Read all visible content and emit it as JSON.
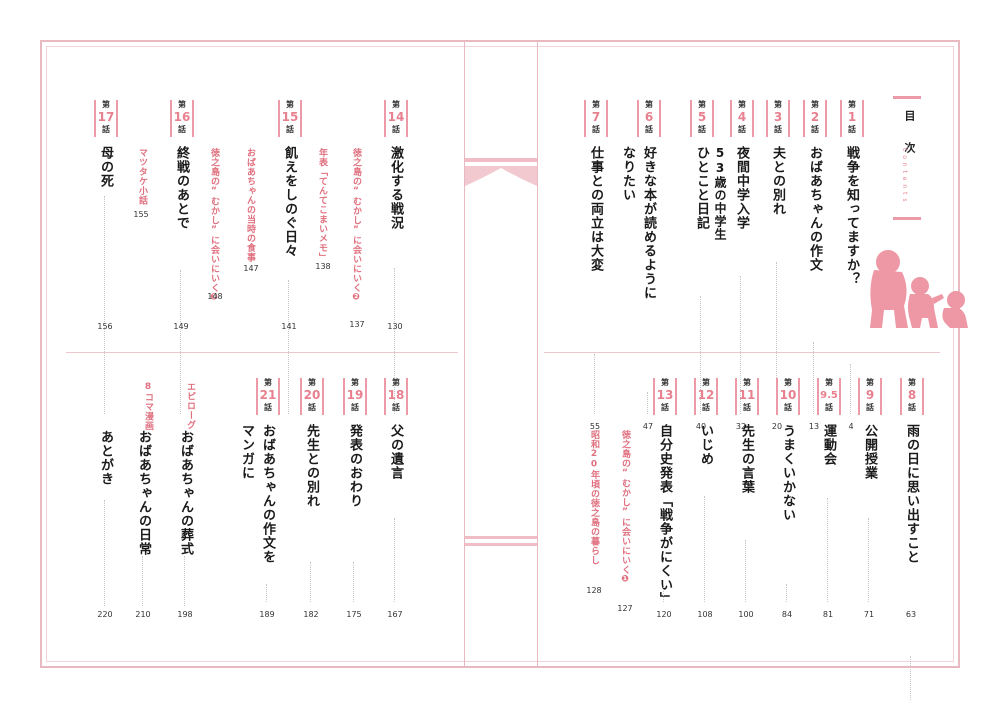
{
  "header": {
    "title": "目 次",
    "subtitle": "c o n t e n t s"
  },
  "chapter_prefix": "第",
  "chapter_suffix": "話",
  "chapters": [
    {
      "num": "1",
      "title": "戦争を知ってますか？",
      "page": "4"
    },
    {
      "num": "2",
      "title": "おばあちゃんの作文",
      "page": "13"
    },
    {
      "num": "3",
      "title": "夫との別れ",
      "page": "20"
    },
    {
      "num": "4",
      "title": "夜間中学入学",
      "title2": "53歳の中学生",
      "page": "32"
    },
    {
      "num": "5",
      "title": "ひとこと日記",
      "page": "40"
    },
    {
      "num": "6",
      "title": "好きな本が読めるように",
      "title2": "なりたい",
      "page": "47"
    },
    {
      "num": "7",
      "title": "仕事との両立は大変",
      "page": "55"
    },
    {
      "num": "8",
      "title": "雨の日に思い出すこと",
      "page": "63"
    },
    {
      "num": "9",
      "title": "公開授業",
      "page": "71"
    },
    {
      "num": "9.5",
      "title": "運動会",
      "page": "81"
    },
    {
      "num": "10",
      "title": "うまくいかない",
      "page": "84"
    },
    {
      "num": "11",
      "title": "先生の言葉",
      "page": "100"
    },
    {
      "num": "12",
      "title": "いじめ",
      "page": "108"
    },
    {
      "num": "13",
      "title": "自分史発表「戦争がにくい」",
      "page": "120"
    },
    {
      "num": "14",
      "title": "激化する戦況",
      "page": "130"
    },
    {
      "num": "15",
      "title": "飢えをしのぐ日々",
      "page": "141"
    },
    {
      "num": "16",
      "title": "終戦のあとで",
      "page": "149"
    },
    {
      "num": "17",
      "title": "母の死",
      "page": "156"
    },
    {
      "num": "18",
      "title": "父の遺言",
      "page": "167"
    },
    {
      "num": "19",
      "title": "発表のおわり",
      "page": "175"
    },
    {
      "num": "20",
      "title": "先生との別れ",
      "page": "182"
    },
    {
      "num": "21",
      "title": "おばあちゃんの作文を",
      "title2": "マンガに",
      "page": "189"
    }
  ],
  "sidebars": [
    {
      "text": "徳之島の“むかし”に会いにいく❶",
      "text2": "昭和20年頃の徳之島の暮らし",
      "page": "127",
      "page2": "128"
    },
    {
      "text": "徳之島の“むかし”に会いにいく❷",
      "page": "137"
    },
    {
      "text": "年表「てんてこまいメモ」",
      "page": "138"
    },
    {
      "text": "おばあちゃんの当時の食事",
      "page": "147"
    },
    {
      "text": "徳之島の“むかし”に会いにいく❸",
      "page": "148"
    },
    {
      "text": "マツタケ小話",
      "page": "155"
    }
  ],
  "extras": [
    {
      "label": "エピローグ",
      "title": "おばあちゃんの葬式",
      "page": "198"
    },
    {
      "label": "8コマ漫画",
      "title": "おばあちゃんの日常",
      "page": "210"
    },
    {
      "title": "あとがき",
      "page": "220"
    }
  ],
  "colors": {
    "accent": "#ec9aa8",
    "text": "#1a1a1a",
    "frame": "#e9b9c1"
  },
  "icons": [
    "grandmother-and-children-silhouette-icon"
  ]
}
